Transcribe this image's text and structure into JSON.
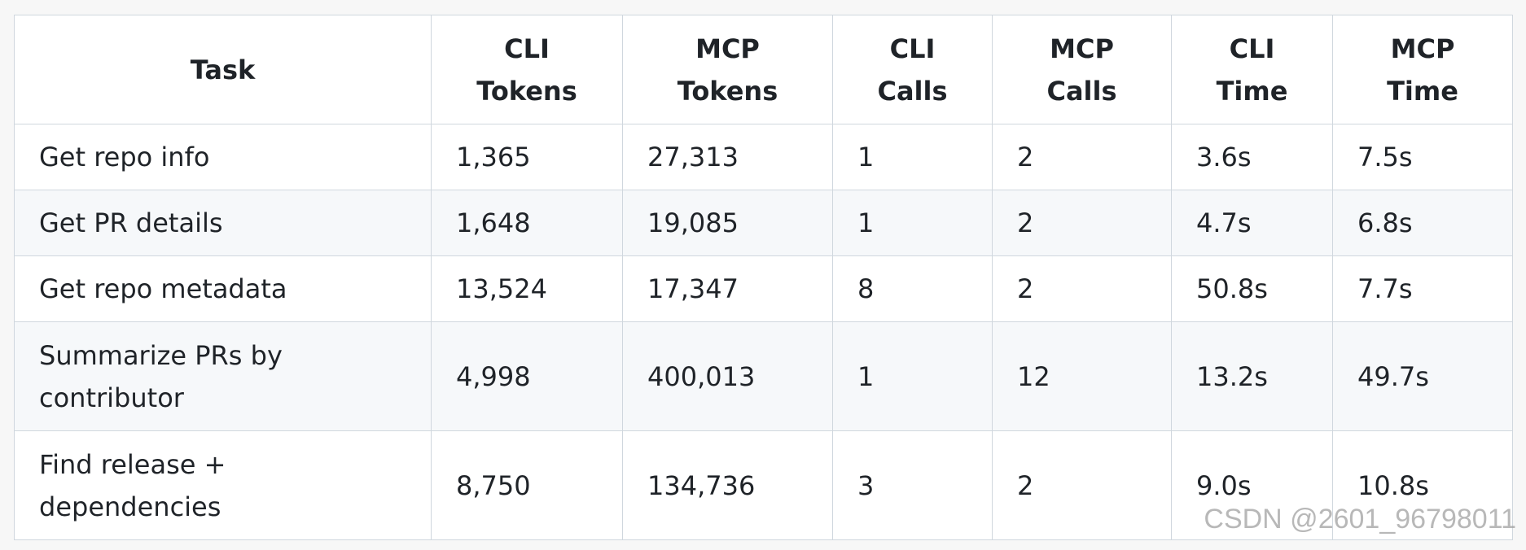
{
  "table": {
    "headers": [
      "Task",
      "CLI Tokens",
      "MCP Tokens",
      "CLI Calls",
      "MCP Calls",
      "CLI Time",
      "MCP Time"
    ],
    "rows": [
      [
        "Get repo info",
        "1,365",
        "27,313",
        "1",
        "2",
        "3.6s",
        "7.5s"
      ],
      [
        "Get PR details",
        "1,648",
        "19,085",
        "1",
        "2",
        "4.7s",
        "6.8s"
      ],
      [
        "Get repo metadata",
        "13,524",
        "17,347",
        "8",
        "2",
        "50.8s",
        "7.7s"
      ],
      [
        "Summarize PRs by contributor",
        "4,998",
        "400,013",
        "1",
        "12",
        "13.2s",
        "49.7s"
      ],
      [
        "Find release + dependencies",
        "8,750",
        "134,736",
        "3",
        "2",
        "9.0s",
        "10.8s"
      ]
    ]
  },
  "watermark": "CSDN @2601_96798011"
}
